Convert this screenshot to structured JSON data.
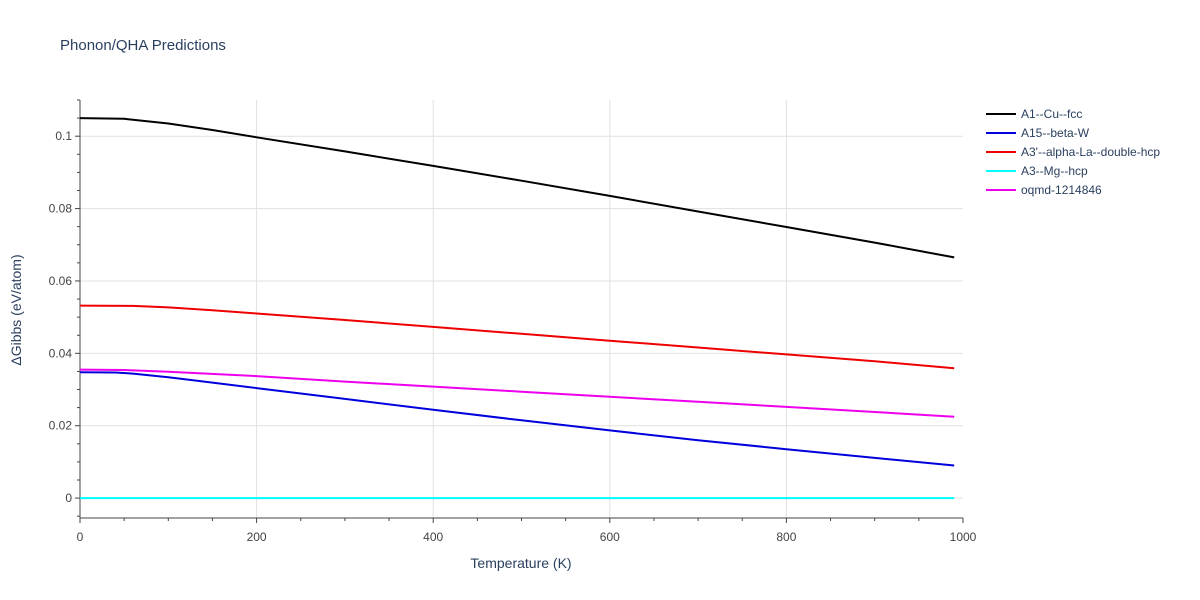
{
  "chart_data": {
    "type": "line",
    "title": "Phonon/QHA Predictions",
    "xlabel": "Temperature (K)",
    "ylabel": "ΔGibbs (eV/atom)",
    "xlim": [
      0,
      1000
    ],
    "ylim": [
      -0.0055,
      0.11
    ],
    "x_ticks": [
      0,
      200,
      400,
      600,
      800,
      1000
    ],
    "y_ticks": [
      0,
      0.02,
      0.04,
      0.06,
      0.08,
      0.1
    ],
    "x_tick_labels": [
      "0",
      "200",
      "400",
      "600",
      "800",
      "1000"
    ],
    "y_tick_labels": [
      "0",
      "0.02",
      "0.04",
      "0.06",
      "0.08",
      "0.1"
    ],
    "grid": true,
    "legend_position": "right",
    "series": [
      {
        "name": "A1--Cu--fcc",
        "color": "#000000",
        "x": [
          0,
          50,
          100,
          150,
          200,
          300,
          400,
          500,
          600,
          700,
          800,
          900,
          990
        ],
        "y": [
          0.105,
          0.1048,
          0.1035,
          0.1017,
          0.0997,
          0.0958,
          0.0918,
          0.0877,
          0.0835,
          0.0792,
          0.0749,
          0.0706,
          0.0665
        ]
      },
      {
        "name": "A15--beta-W",
        "color": "#0000dd",
        "x": [
          0,
          40,
          60,
          100,
          150,
          200,
          300,
          400,
          500,
          600,
          700,
          800,
          900,
          990
        ],
        "y": [
          0.0348,
          0.0347,
          0.0344,
          0.0334,
          0.0319,
          0.0304,
          0.0274,
          0.0244,
          0.0215,
          0.0187,
          0.016,
          0.0135,
          0.0111,
          0.009
        ]
      },
      {
        "name": "A3'--alpha-La--double-hcp",
        "color": "#ee0000",
        "x": [
          0,
          60,
          100,
          150,
          200,
          300,
          400,
          500,
          600,
          700,
          800,
          900,
          990
        ],
        "y": [
          0.0532,
          0.0531,
          0.0527,
          0.0519,
          0.051,
          0.0492,
          0.0473,
          0.0454,
          0.0435,
          0.0416,
          0.0397,
          0.0378,
          0.0359
        ]
      },
      {
        "name": "A3--Mg--hcp",
        "color": "#00ffff",
        "x": [
          0,
          990
        ],
        "y": [
          0,
          0
        ]
      },
      {
        "name": "oqmd-1214846",
        "color": "#ee00ee",
        "x": [
          0,
          50,
          100,
          200,
          300,
          400,
          500,
          600,
          700,
          800,
          900,
          990
        ],
        "y": [
          0.0355,
          0.0354,
          0.0349,
          0.0337,
          0.0322,
          0.0308,
          0.0294,
          0.028,
          0.0266,
          0.0252,
          0.0238,
          0.0225
        ]
      }
    ]
  }
}
